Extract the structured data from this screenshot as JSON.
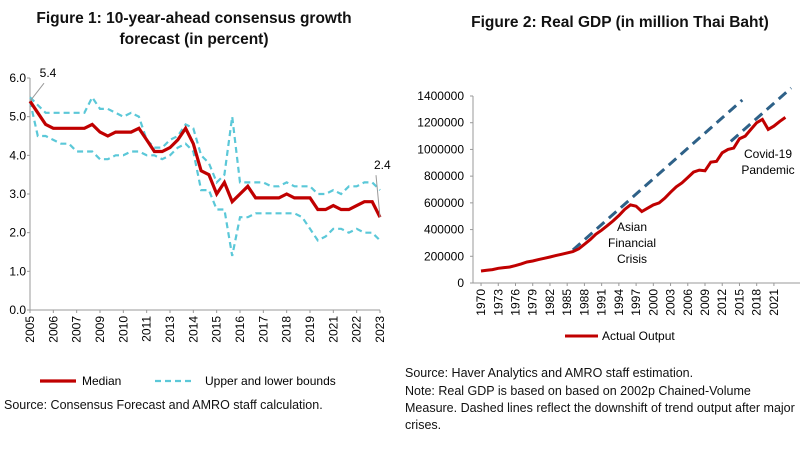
{
  "chart_data": [
    {
      "type": "line",
      "title": "Figure 1: 10-year-ahead consensus growth forecast (in percent)",
      "source": "Source: Consensus Forecast and AMRO staff calculation.",
      "categories": [
        "2005",
        null,
        null,
        "2006",
        null,
        null,
        "2007",
        null,
        null,
        "2009",
        null,
        null,
        "2010",
        null,
        null,
        "2011",
        null,
        null,
        "2013",
        null,
        null,
        "2014",
        null,
        null,
        "2015",
        null,
        null,
        "2016",
        null,
        null,
        "2017",
        null,
        null,
        "2018",
        null,
        null,
        "2019",
        null,
        null,
        "2021",
        null,
        null,
        "2022",
        null,
        null,
        "2023"
      ],
      "ylim": [
        0,
        6
      ],
      "yticks": [
        {
          "value": 0,
          "label": "0.0"
        },
        {
          "value": 1,
          "label": "1.0"
        },
        {
          "value": 2,
          "label": "2.0"
        },
        {
          "value": 3,
          "label": "3.0"
        },
        {
          "value": 4,
          "label": "4.0"
        },
        {
          "value": 5,
          "label": "5.0"
        },
        {
          "value": 6,
          "label": "6.0"
        }
      ],
      "grid": false,
      "series": [
        {
          "name": "Median",
          "color": "#c00000",
          "values": [
            5.4,
            5.1,
            4.8,
            4.7,
            4.7,
            4.7,
            4.7,
            4.7,
            4.8,
            4.6,
            4.5,
            4.6,
            4.6,
            4.6,
            4.7,
            4.4,
            4.1,
            4.1,
            4.2,
            4.4,
            4.7,
            4.3,
            3.6,
            3.5,
            3.0,
            3.3,
            2.8,
            3.0,
            3.2,
            2.9,
            2.9,
            2.9,
            2.9,
            3.0,
            2.9,
            2.9,
            2.9,
            2.6,
            2.6,
            2.7,
            2.6,
            2.6,
            2.7,
            2.8,
            2.8,
            2.4
          ],
          "value_labels": [
            "5.4",
            null,
            null,
            null,
            null,
            null,
            null,
            null,
            null,
            null,
            null,
            null,
            null,
            null,
            null,
            null,
            null,
            null,
            null,
            null,
            null,
            null,
            null,
            null,
            null,
            null,
            null,
            null,
            null,
            null,
            null,
            null,
            null,
            null,
            null,
            null,
            null,
            null,
            null,
            null,
            null,
            null,
            null,
            null,
            null,
            "2.4"
          ]
        },
        {
          "name": "Upper and lower bounds",
          "color": "#5bc8d8",
          "dashed": true,
          "upper": [
            5.5,
            5.3,
            5.1,
            5.1,
            5.1,
            5.1,
            5.1,
            5.1,
            5.5,
            5.2,
            5.2,
            5.1,
            5.0,
            5.1,
            5.0,
            4.4,
            4.2,
            4.2,
            4.4,
            4.5,
            4.8,
            4.7,
            4.0,
            3.8,
            3.3,
            3.5,
            5.0,
            3.3,
            3.3,
            3.3,
            3.3,
            3.2,
            3.2,
            3.3,
            3.2,
            3.2,
            3.2,
            3.0,
            3.0,
            3.1,
            3.0,
            3.2,
            3.2,
            3.3,
            3.3,
            3.1
          ],
          "lower": [
            5.4,
            4.5,
            4.5,
            4.4,
            4.3,
            4.3,
            4.1,
            4.1,
            4.1,
            3.9,
            3.9,
            4.0,
            4.0,
            4.1,
            4.1,
            4.0,
            4.0,
            3.9,
            4.0,
            4.2,
            4.3,
            4.1,
            3.1,
            3.1,
            2.6,
            2.6,
            1.4,
            2.4,
            2.4,
            2.5,
            2.5,
            2.5,
            2.5,
            2.5,
            2.5,
            2.4,
            2.1,
            1.8,
            1.9,
            2.1,
            2.1,
            2.0,
            2.1,
            2.0,
            2.0,
            1.8
          ]
        }
      ]
    },
    {
      "type": "line",
      "title": "Figure 2: Real GDP (in million Thai Baht)",
      "source": "Source: Haver Analytics and AMRO staff estimation.",
      "note": "Note: Real GDP is based on  based on 2002p Chained-Volume Measure. Dashed lines reflect the downshift of trend output after major crises.",
      "xlim": [
        1968.6,
        2023.8
      ],
      "xticks": [
        1970,
        1973,
        1976,
        1979,
        1982,
        1985,
        1988,
        1991,
        1994,
        1997,
        2000,
        2003,
        2006,
        2009,
        2012,
        2015,
        2018,
        2021
      ],
      "ylim": [
        0,
        1400000
      ],
      "yticks": [
        0,
        200000,
        400000,
        600000,
        800000,
        1000000,
        1200000,
        1400000
      ],
      "grid": false,
      "series": [
        {
          "name": "Actual Output",
          "color": "#c00000",
          "x": [
            1970,
            1971,
            1972,
            1973,
            1974,
            1975,
            1976,
            1977,
            1978,
            1979,
            1980,
            1981,
            1982,
            1983,
            1984,
            1985,
            1986,
            1987,
            1988,
            1989,
            1990,
            1991,
            1992,
            1993,
            1994,
            1995,
            1996,
            1997,
            1998,
            1999,
            2000,
            2001,
            2002,
            2003,
            2004,
            2005,
            2006,
            2007,
            2008,
            2009,
            2010,
            2011,
            2012,
            2013,
            2014,
            2015,
            2016,
            2017,
            2018,
            2019,
            2020,
            2021,
            2022,
            2023
          ],
          "values": [
            90000,
            95000,
            100000,
            110000,
            115000,
            120000,
            130000,
            143000,
            157000,
            165000,
            175000,
            185000,
            195000,
            205000,
            215000,
            225000,
            235000,
            255000,
            290000,
            325000,
            365000,
            395000,
            430000,
            465000,
            505000,
            550000,
            585000,
            575000,
            535000,
            560000,
            585000,
            600000,
            635000,
            680000,
            720000,
            750000,
            790000,
            830000,
            845000,
            840000,
            905000,
            910000,
            975000,
            1000000,
            1010000,
            1080000,
            1100000,
            1150000,
            1200000,
            1225000,
            1150000,
            1175000,
            1210000,
            1240000
          ]
        }
      ],
      "trend_lines": {
        "color": "#2e6188",
        "lines": [
          {
            "x": [
              1986,
              2015.5
            ],
            "values": [
              247000,
              1370000
            ]
          },
          {
            "x": [
              2013.5,
              2024
            ],
            "values": [
              1060000,
              1460000
            ]
          }
        ]
      },
      "annotations": [
        [
          "Asian",
          "Financial",
          "Crisis"
        ],
        [
          "Covid-19",
          "Pandemic"
        ]
      ]
    }
  ]
}
